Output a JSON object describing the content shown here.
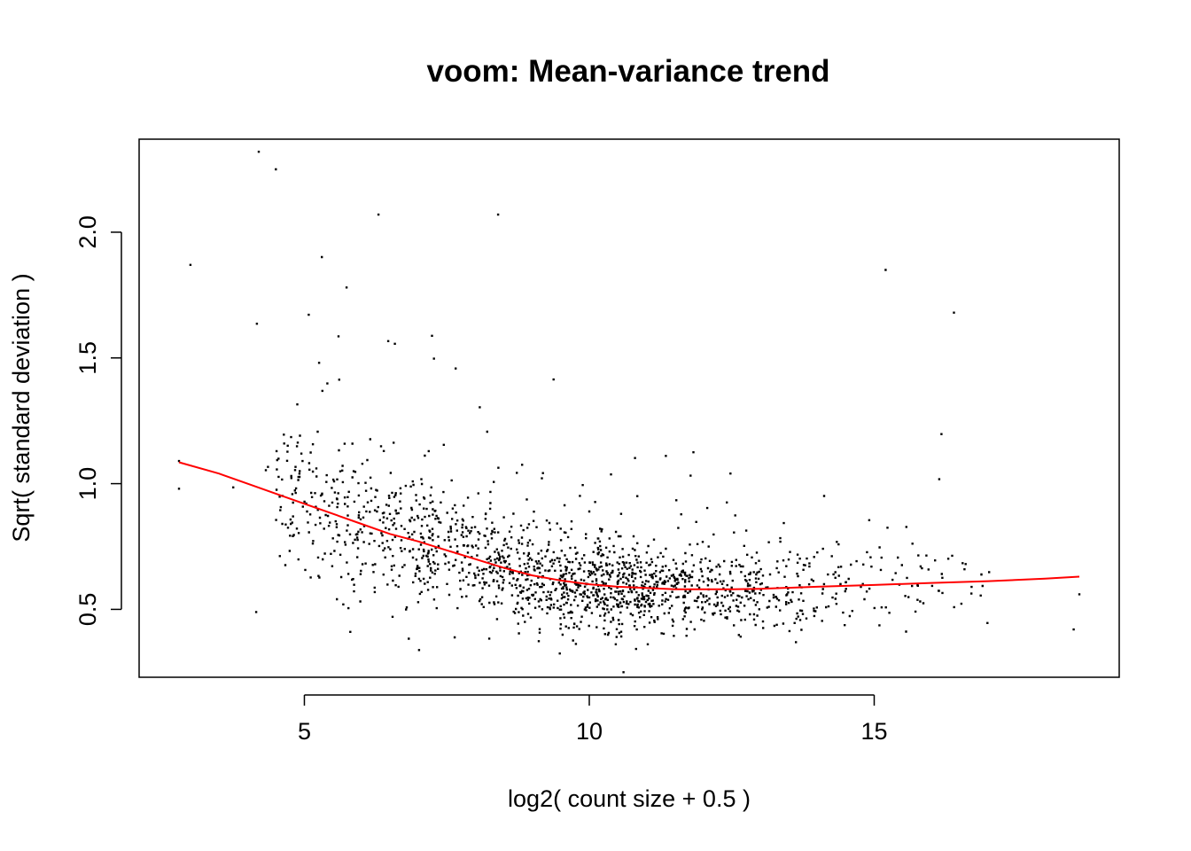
{
  "chart_data": {
    "type": "scatter",
    "title": "voom: Mean-variance trend",
    "xlabel": "log2( count size + 0.5 )",
    "ylabel": "Sqrt( standard deviation )",
    "xlim": [
      2.1,
      19.3
    ],
    "ylim": [
      0.23,
      2.37
    ],
    "x_ticks": [
      5,
      10,
      15
    ],
    "y_ticks": [
      0.5,
      1.0,
      1.5,
      2.0
    ],
    "x_tick_labels": [
      "5",
      "10",
      "15"
    ],
    "y_tick_labels": [
      "0.5",
      "1.0",
      "1.5",
      "2.0"
    ],
    "grid": false,
    "legend": "none",
    "point_color": "#000000",
    "trend_color": "#ff0000",
    "scatter_summary": {
      "n_points": 11000,
      "x_range": [
        2.8,
        18.6
      ],
      "y_range": [
        0.25,
        2.32
      ],
      "note_points": [
        [
          4.2,
          2.32
        ],
        [
          4.5,
          2.25
        ],
        [
          6.3,
          2.07
        ],
        [
          8.4,
          2.07
        ],
        [
          15.2,
          1.85
        ],
        [
          16.4,
          1.68
        ],
        [
          18.5,
          0.42
        ],
        [
          18.6,
          0.56
        ],
        [
          2.8,
          0.98
        ],
        [
          2.8,
          1.09
        ],
        [
          3.0,
          1.87
        ],
        [
          10.6,
          0.25
        ]
      ]
    },
    "series": [
      {
        "type": "line",
        "x": [
          2.8,
          3.5,
          4.0,
          4.5,
          5.0,
          5.5,
          6.0,
          6.5,
          7.0,
          7.5,
          8.0,
          8.5,
          9.0,
          9.5,
          10.0,
          10.5,
          11.0,
          11.5,
          12.0,
          12.5,
          13.0,
          14.0,
          15.0,
          16.0,
          17.0,
          18.0,
          18.6
        ],
        "y": [
          1.085,
          1.04,
          1.0,
          0.96,
          0.92,
          0.88,
          0.84,
          0.8,
          0.77,
          0.735,
          0.7,
          0.665,
          0.635,
          0.615,
          0.6,
          0.59,
          0.585,
          0.58,
          0.58,
          0.58,
          0.582,
          0.59,
          0.597,
          0.605,
          0.612,
          0.622,
          0.63
        ]
      }
    ]
  }
}
